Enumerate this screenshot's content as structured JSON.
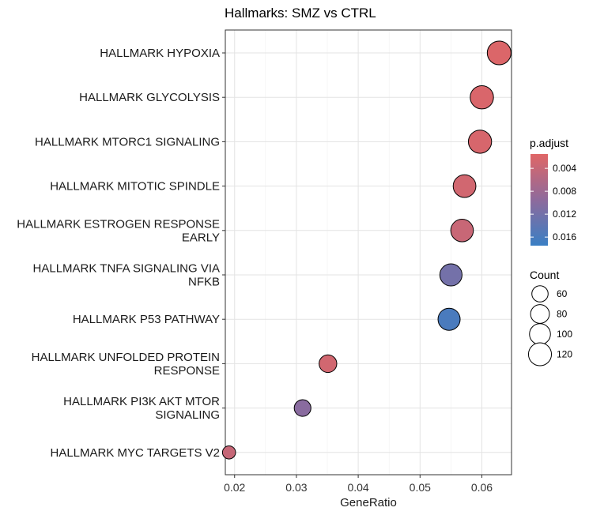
{
  "chart_data": {
    "type": "scatter",
    "title": "Hallmarks: SMZ vs CTRL",
    "xlabel": "GeneRatio",
    "ylabel": "",
    "xlim": [
      0.0185,
      0.0648
    ],
    "x_ticks": [
      "0.02",
      "0.03",
      "0.04",
      "0.05",
      "0.06"
    ],
    "x_tick_values": [
      0.02,
      0.03,
      0.04,
      0.05,
      0.06
    ],
    "grid": true,
    "legend_position": "right",
    "categories": [
      [
        "HALLMARK HYPOXIA"
      ],
      [
        "HALLMARK GLYCOLYSIS"
      ],
      [
        "HALLMARK MTORC1 SIGNALING"
      ],
      [
        "HALLMARK MITOTIC SPINDLE"
      ],
      [
        "HALLMARK ESTROGEN RESPONSE",
        "EARLY"
      ],
      [
        "HALLMARK TNFA SIGNALING VIA",
        "NFKB"
      ],
      [
        "HALLMARK P53 PATHWAY"
      ],
      [
        "HALLMARK UNFOLDED PROTEIN",
        "RESPONSE"
      ],
      [
        "HALLMARK PI3K AKT MTOR",
        "SIGNALING"
      ],
      [
        "HALLMARK MYC TARGETS V2"
      ]
    ],
    "points": [
      {
        "x": 0.0628,
        "count": 128,
        "p_adjust": 0.002
      },
      {
        "x": 0.06,
        "count": 123,
        "p_adjust": 0.0022
      },
      {
        "x": 0.0597,
        "count": 122,
        "p_adjust": 0.0024
      },
      {
        "x": 0.0572,
        "count": 117,
        "p_adjust": 0.003
      },
      {
        "x": 0.0568,
        "count": 116,
        "p_adjust": 0.0038
      },
      {
        "x": 0.055,
        "count": 112,
        "p_adjust": 0.012
      },
      {
        "x": 0.0547,
        "count": 111,
        "p_adjust": 0.016
      },
      {
        "x": 0.0351,
        "count": 71,
        "p_adjust": 0.003
      },
      {
        "x": 0.031,
        "count": 63,
        "p_adjust": 0.01
      },
      {
        "x": 0.0191,
        "count": 39,
        "p_adjust": 0.004
      }
    ],
    "color_legend": {
      "title": "p.adjust",
      "ticks": [
        "0.004",
        "0.008",
        "0.012",
        "0.016"
      ],
      "tick_values": [
        0.004,
        0.008,
        0.012,
        0.016
      ],
      "range": [
        0.0015,
        0.0175
      ],
      "low_color": "#e06666",
      "high_color": "#3a7fc4"
    },
    "size_legend": {
      "title": "Count",
      "values": [
        60,
        80,
        100,
        120
      ],
      "labels": [
        "60",
        "80",
        "100",
        "120"
      ]
    }
  }
}
